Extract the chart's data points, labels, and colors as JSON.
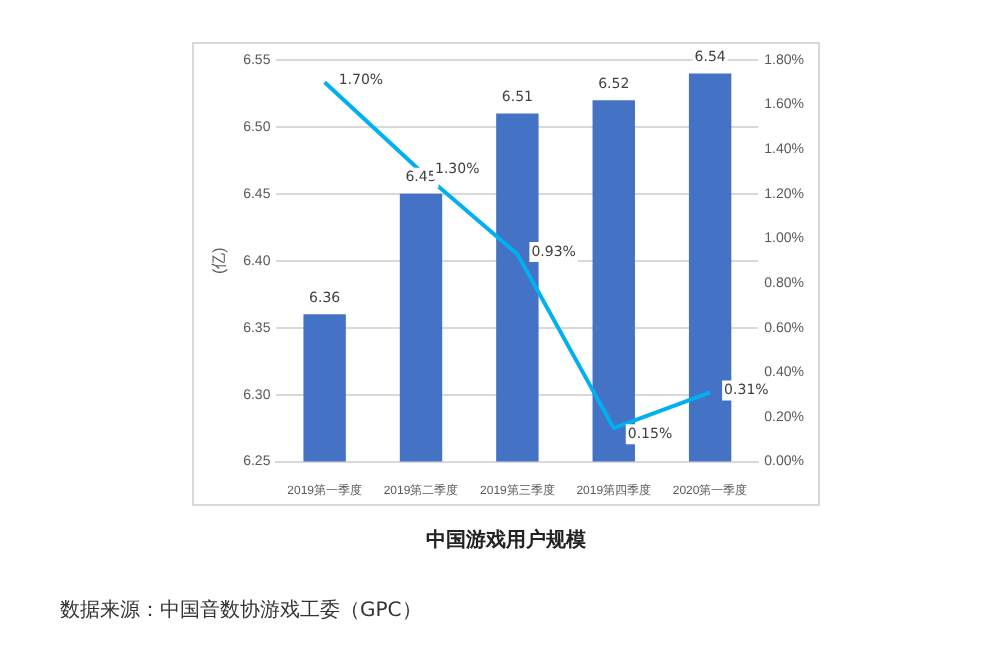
{
  "chart_data": {
    "type": "bar",
    "title": "中国游戏用户规模",
    "ylabel": "(亿)",
    "categories": [
      "2019第一季度",
      "2019第二季度",
      "2019第三季度",
      "2019第四季度",
      "2020第一季度"
    ],
    "series": [
      {
        "color": "#4472c4",
        "values": [
          6.36,
          6.45,
          6.51,
          6.52,
          6.54
        ],
        "value_labels": [
          "6.36",
          "6.45",
          "6.51",
          "6.52",
          "6.54"
        ]
      },
      {
        "type": "line",
        "axis": "y2",
        "color": "#00b0f0",
        "values": [
          1.7,
          1.3,
          0.93,
          0.15,
          0.31
        ],
        "value_labels": [
          "1.70%",
          "1.30%",
          "0.93%",
          "0.15%",
          "0.31%"
        ]
      }
    ],
    "ylim": [
      6.25,
      6.55
    ],
    "yticks": [
      6.25,
      {
        "value": 6.3,
        "label": "6.30"
      },
      6.35,
      {
        "value": 6.4,
        "label": "6.40"
      },
      6.45,
      {
        "value": 6.5,
        "label": "6.50"
      },
      6.55
    ],
    "y2lim": [
      0,
      1.8
    ],
    "y2ticks": [
      {
        "value": 0,
        "label": "0.00%"
      },
      {
        "value": 0.2,
        "label": "0.20%"
      },
      {
        "value": 0.4,
        "label": "0.40%"
      },
      {
        "value": 0.6,
        "label": "0.60%"
      },
      {
        "value": 0.8,
        "label": "0.80%"
      },
      {
        "value": 1.0,
        "label": "1.00%"
      },
      {
        "value": 1.2,
        "label": "1.20%"
      },
      {
        "value": 1.4,
        "label": "1.40%"
      },
      {
        "value": 1.6,
        "label": "1.60%"
      },
      {
        "value": 1.8,
        "label": "1.80%"
      }
    ],
    "grid": "y",
    "legend": false,
    "marker": "none",
    "line_style": "solid",
    "annotations": [
      "数据来源：中国音数协游戏工委（GPC）"
    ]
  }
}
